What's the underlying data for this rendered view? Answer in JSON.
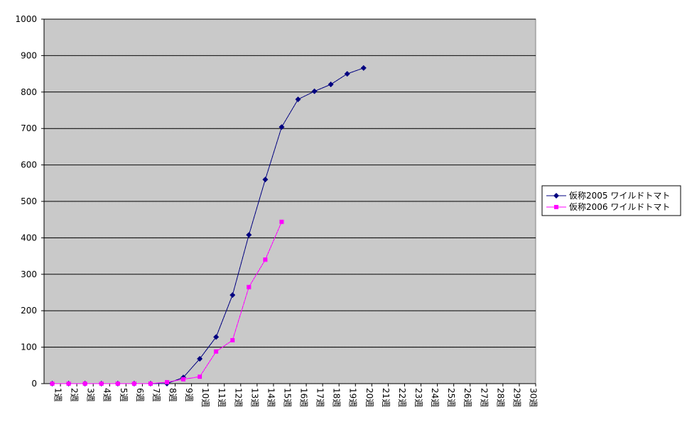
{
  "chart_data": {
    "type": "line",
    "categories": [
      "1週",
      "2週",
      "3週",
      "4週",
      "5週",
      "6週",
      "7週",
      "8週",
      "9週",
      "10週",
      "11週",
      "12週",
      "13週",
      "14週",
      "15週",
      "16週",
      "17週",
      "18週",
      "19週",
      "20週",
      "21週",
      "22週",
      "23週",
      "24週",
      "25週",
      "26週",
      "27週",
      "28週",
      "29週",
      "30週"
    ],
    "series": [
      {
        "name": "仮称2005 ワイルドトマト",
        "color": "#000080",
        "marker": "diamond",
        "values": [
          0,
          0,
          0,
          0,
          0,
          0,
          0,
          0,
          17,
          68,
          128,
          243,
          408,
          560,
          704,
          780,
          802,
          821,
          850,
          866,
          null,
          null,
          null,
          null,
          null,
          null,
          null,
          null,
          null,
          null
        ]
      },
      {
        "name": "仮称2006 ワイルドトマト",
        "color": "#ff00ff",
        "marker": "square",
        "values": [
          0,
          0,
          0,
          0,
          0,
          0,
          0,
          4,
          12,
          19,
          88,
          119,
          265,
          340,
          444,
          null,
          null,
          null,
          null,
          null,
          null,
          null,
          null,
          null,
          null,
          null,
          null,
          null,
          null,
          null
        ]
      }
    ],
    "ylim": [
      0,
      1000
    ],
    "yticks": [
      0,
      100,
      200,
      300,
      400,
      500,
      600,
      700,
      800,
      900,
      1000
    ],
    "grid": true,
    "legend": "right"
  }
}
